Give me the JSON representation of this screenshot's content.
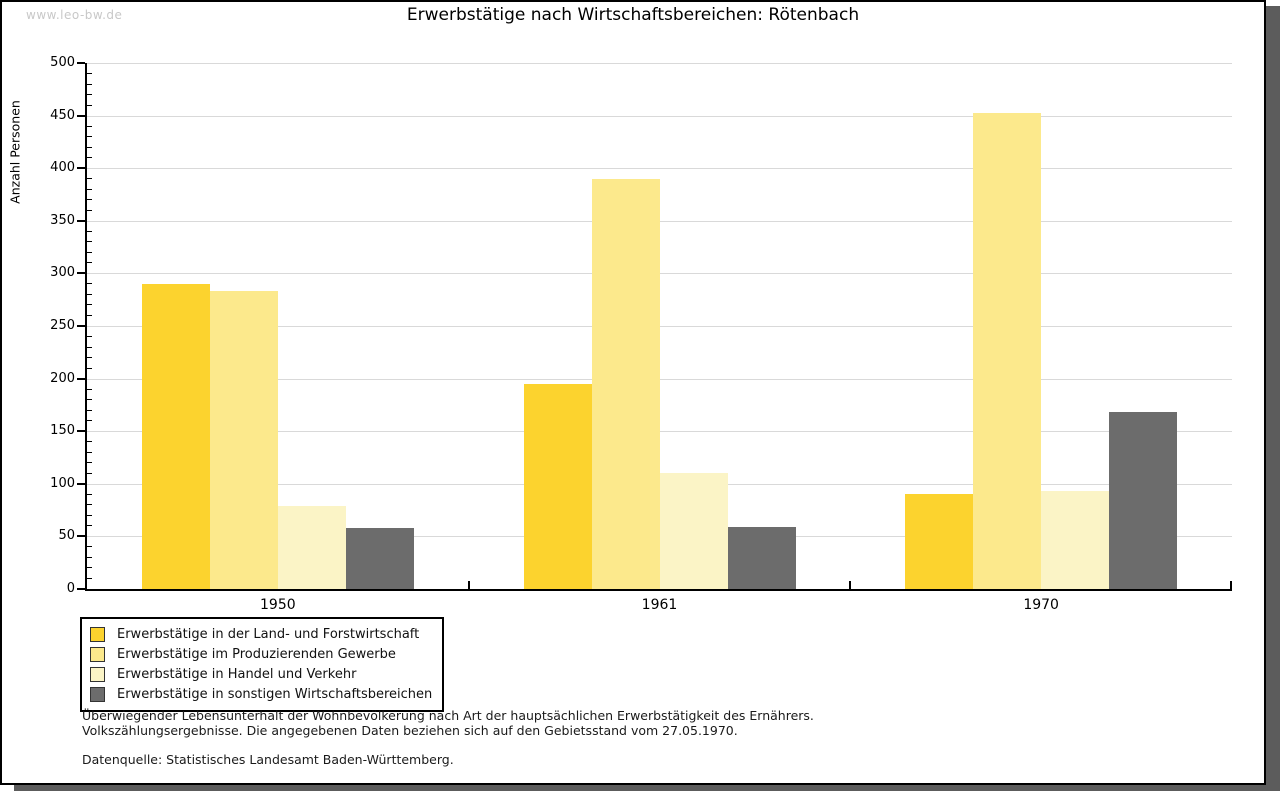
{
  "watermark": "www.leo-bw.de",
  "chart_data": {
    "type": "bar",
    "title": "Erwerbstätige nach Wirtschaftsbereichen: Rötenbach",
    "xlabel": "",
    "ylabel": "Anzahl Personen",
    "ylim": [
      0,
      500
    ],
    "ytick_step": 50,
    "minor_tick_step": 10,
    "grid": true,
    "legend_position": "bottom-left",
    "categories": [
      "1950",
      "1961",
      "1970"
    ],
    "series": [
      {
        "name": "Erwerbstätige in der Land- und Forstwirtschaft",
        "color": "#fcd32e",
        "values": [
          290,
          195,
          90
        ]
      },
      {
        "name": "Erwerbstätige im Produzierenden Gewerbe",
        "color": "#fce98c",
        "values": [
          283,
          390,
          452
        ]
      },
      {
        "name": "Erwerbstätige in Handel und Verkehr",
        "color": "#fbf4c6",
        "values": [
          79,
          110,
          93
        ]
      },
      {
        "name": "Erwerbstätige in sonstigen Wirtschaftsbereichen",
        "color": "#6c6c6c",
        "values": [
          58,
          59,
          168
        ]
      }
    ]
  },
  "footnotes": {
    "line1": "Überwiegender Lebensunterhalt der Wohnbevölkerung nach Art der hauptsächlichen Erwerbstätigkeit des Ernährers.",
    "line2": "Volkszählungsergebnisse. Die angegebenen Daten beziehen sich auf den Gebietsstand vom 27.05.1970.",
    "source": "Datenquelle: Statistisches Landesamt Baden-Württemberg."
  },
  "colors": {
    "frame_shadow": "#5c5c5c",
    "gridline": "#d9d9d9",
    "watermark": "#c8c8c8",
    "axis": "#000000"
  }
}
